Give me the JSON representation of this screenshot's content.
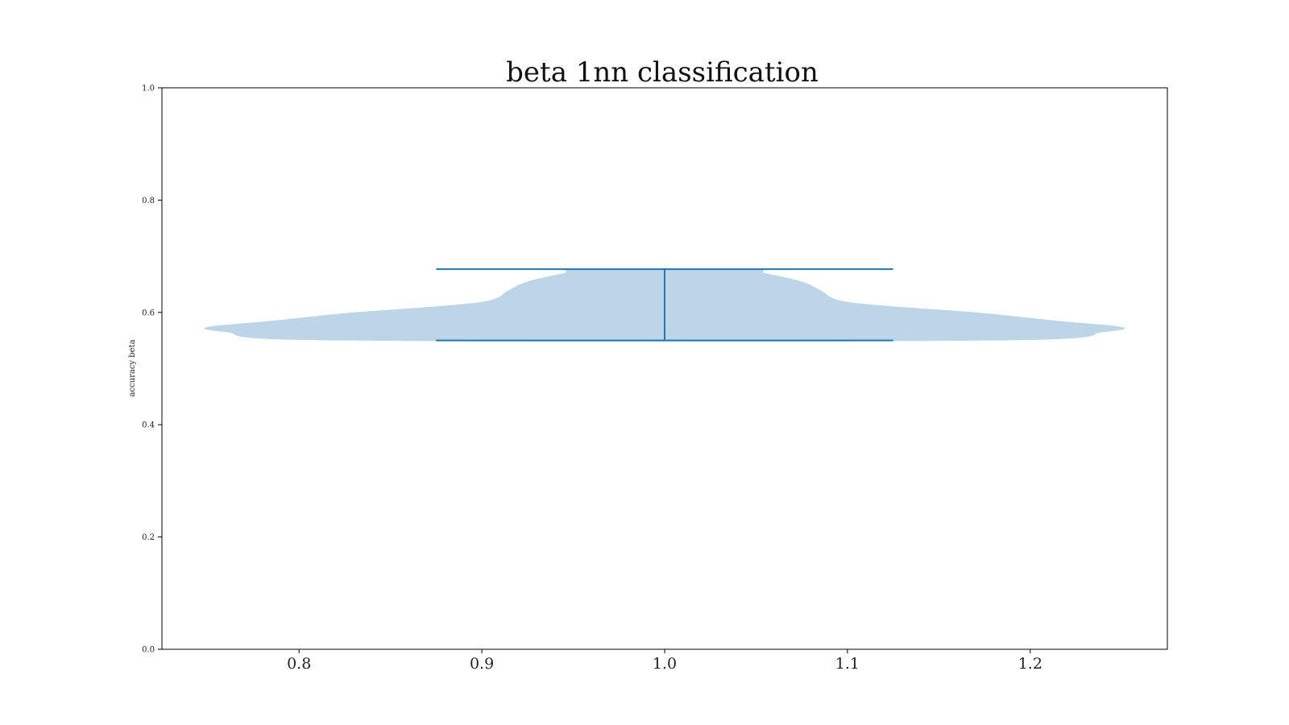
{
  "chart_data": {
    "type": "violin",
    "title": "beta 1nn classification",
    "xlabel": "",
    "ylabel": "accuracy beta",
    "xlim": [
      0.725,
      1.275
    ],
    "ylim": [
      0.0,
      1.0
    ],
    "xticks": [
      "0.8",
      "0.9",
      "1.0",
      "1.1",
      "1.2"
    ],
    "yticks": [
      "0.0",
      "0.2",
      "0.4",
      "0.6",
      "0.8",
      "1.0"
    ],
    "grid": false,
    "violin": {
      "position": 1.0,
      "min": 0.55,
      "max": 0.677,
      "has_medians": false,
      "color": "#1f77b4",
      "body_color": "#bcd6e8",
      "density_profile": [
        {
          "y": 0.55,
          "half_width": 0.18
        },
        {
          "y": 0.565,
          "half_width": 0.24
        },
        {
          "y": 0.574,
          "half_width": 0.25
        },
        {
          "y": 0.585,
          "half_width": 0.215
        },
        {
          "y": 0.6,
          "half_width": 0.17
        },
        {
          "y": 0.612,
          "half_width": 0.12
        },
        {
          "y": 0.622,
          "half_width": 0.095
        },
        {
          "y": 0.64,
          "half_width": 0.085
        },
        {
          "y": 0.655,
          "half_width": 0.075
        },
        {
          "y": 0.67,
          "half_width": 0.055
        },
        {
          "y": 0.677,
          "half_width": 0.045
        }
      ]
    }
  }
}
